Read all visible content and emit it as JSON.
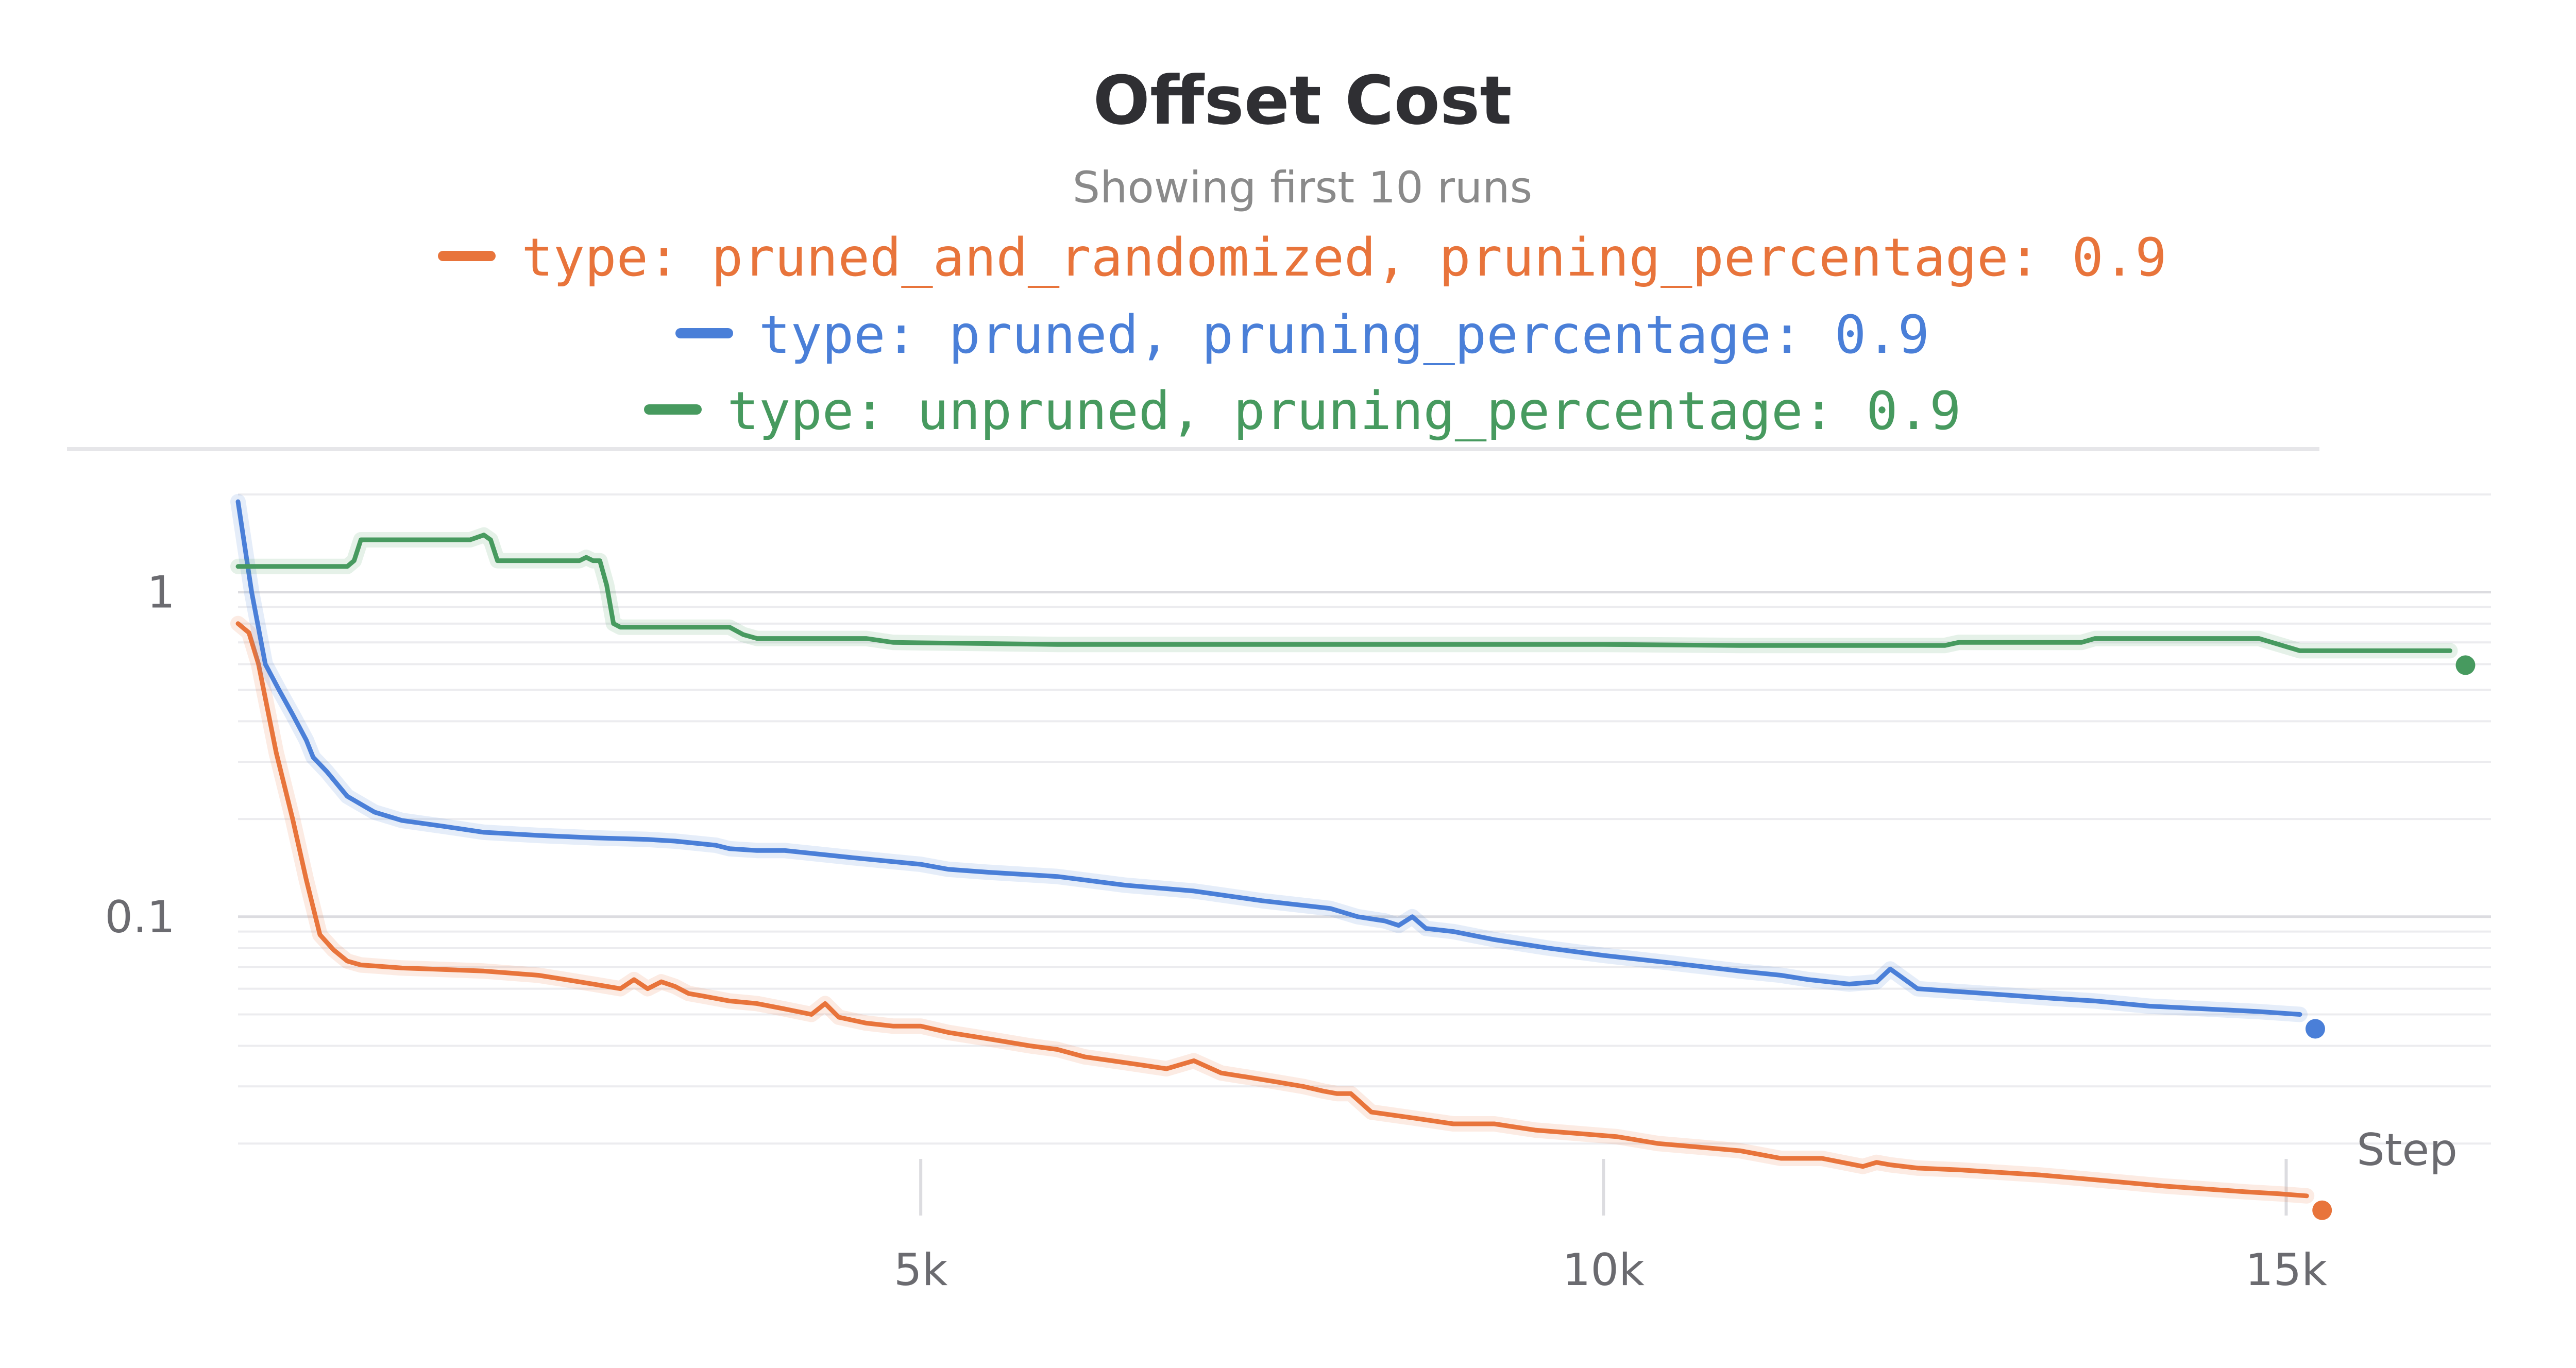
{
  "chart_data": {
    "type": "line",
    "title": "Offset Cost",
    "subtitle": "Showing first 10 runs",
    "xlabel": "Step",
    "ylabel": "",
    "yscale": "log",
    "xlim": [
      0,
      16500
    ],
    "ylim": [
      0.012,
      2.0
    ],
    "x_ticks": [
      {
        "value": 5000,
        "label": "5k"
      },
      {
        "value": 10000,
        "label": "10k"
      },
      {
        "value": 15000,
        "label": "15k"
      }
    ],
    "y_ticks": [
      {
        "value": 1,
        "label": "1"
      },
      {
        "value": 0.1,
        "label": "0.1"
      }
    ],
    "grid": true,
    "legend_position": "top-center",
    "series": [
      {
        "name": "type: pruned_and_randomized, pruning_percentage: 0.9",
        "color": "#e8743b",
        "x": [
          0,
          80,
          150,
          280,
          400,
          500,
          600,
          700,
          800,
          900,
          1000,
          1100,
          1200,
          1400,
          1600,
          1800,
          2000,
          2200,
          2400,
          2600,
          2800,
          2900,
          3000,
          3100,
          3200,
          3300,
          3400,
          3600,
          3800,
          4000,
          4200,
          4300,
          4400,
          4600,
          4800,
          5000,
          5200,
          5500,
          5800,
          6000,
          6200,
          6400,
          6600,
          6800,
          7000,
          7200,
          7400,
          7600,
          7800,
          7950,
          8050,
          8150,
          8300,
          8600,
          8900,
          9200,
          9500,
          9800,
          10100,
          10400,
          10700,
          11000,
          11300,
          11600,
          11900,
          12000,
          12100,
          12300,
          12600,
          12900,
          13200,
          13500,
          13800,
          14100,
          14400,
          14700,
          14950,
          15050,
          15150
        ],
        "values": [
          0.8,
          0.75,
          0.6,
          0.32,
          0.2,
          0.13,
          0.088,
          0.079,
          0.073,
          0.071,
          0.0705,
          0.07,
          0.0695,
          0.069,
          0.0685,
          0.068,
          0.067,
          0.066,
          0.064,
          0.062,
          0.06,
          0.064,
          0.06,
          0.063,
          0.061,
          0.058,
          0.057,
          0.055,
          0.054,
          0.052,
          0.05,
          0.054,
          0.049,
          0.047,
          0.046,
          0.046,
          0.044,
          0.042,
          0.04,
          0.039,
          0.037,
          0.036,
          0.035,
          0.034,
          0.036,
          0.033,
          0.032,
          0.031,
          0.03,
          0.029,
          0.0285,
          0.0285,
          0.025,
          0.024,
          0.023,
          0.023,
          0.022,
          0.0215,
          0.021,
          0.02,
          0.0195,
          0.019,
          0.018,
          0.018,
          0.017,
          0.0175,
          0.0172,
          0.0168,
          0.0166,
          0.0163,
          0.016,
          0.0156,
          0.0152,
          0.0148,
          0.0145,
          0.0142,
          0.014,
          0.0139,
          0.0138
        ]
      },
      {
        "name": "type: pruned, pruning_percentage: 0.9",
        "color": "#4a7fd8",
        "x": [
          0,
          100,
          200,
          300,
          400,
          500,
          550,
          650,
          800,
          1000,
          1200,
          1500,
          1800,
          2000,
          2200,
          2600,
          3000,
          3200,
          3500,
          3600,
          3800,
          4000,
          4500,
          5000,
          5200,
          5500,
          6000,
          6500,
          7000,
          7500,
          8000,
          8200,
          8400,
          8500,
          8600,
          8700,
          8900,
          9200,
          9600,
          10000,
          10500,
          11000,
          11300,
          11500,
          11800,
          12000,
          12100,
          12300,
          12800,
          13300,
          13600,
          13800,
          14000,
          14400,
          14800,
          15100
        ],
        "values": [
          1.9,
          1.0,
          0.6,
          0.5,
          0.42,
          0.35,
          0.31,
          0.28,
          0.235,
          0.21,
          0.198,
          0.19,
          0.182,
          0.18,
          0.178,
          0.175,
          0.173,
          0.171,
          0.166,
          0.162,
          0.16,
          0.16,
          0.152,
          0.145,
          0.14,
          0.137,
          0.133,
          0.125,
          0.12,
          0.112,
          0.106,
          0.1,
          0.097,
          0.094,
          0.1,
          0.092,
          0.09,
          0.085,
          0.08,
          0.076,
          0.072,
          0.068,
          0.066,
          0.064,
          0.062,
          0.063,
          0.069,
          0.06,
          0.058,
          0.056,
          0.055,
          0.054,
          0.053,
          0.052,
          0.051,
          0.05
        ]
      },
      {
        "name": "type: unpruned, pruning_percentage: 0.9",
        "color": "#479a5f",
        "x": [
          0,
          400,
          800,
          850,
          900,
          1700,
          1800,
          1850,
          1900,
          2500,
          2550,
          2600,
          2650,
          2700,
          2750,
          2800,
          3200,
          3600,
          3700,
          3800,
          4400,
          4600,
          4800,
          6000,
          8000,
          10000,
          11000,
          12000,
          12500,
          12600,
          13000,
          13500,
          13600,
          14000,
          14300,
          14400,
          14800,
          15100,
          15500,
          16200
        ],
        "values": [
          1.2,
          1.2,
          1.2,
          1.25,
          1.45,
          1.45,
          1.5,
          1.45,
          1.25,
          1.25,
          1.28,
          1.25,
          1.25,
          1.05,
          0.8,
          0.78,
          0.78,
          0.78,
          0.74,
          0.72,
          0.72,
          0.72,
          0.7,
          0.69,
          0.69,
          0.69,
          0.685,
          0.685,
          0.685,
          0.7,
          0.7,
          0.7,
          0.72,
          0.72,
          0.72,
          0.72,
          0.72,
          0.66,
          0.66,
          0.66
        ]
      }
    ]
  }
}
